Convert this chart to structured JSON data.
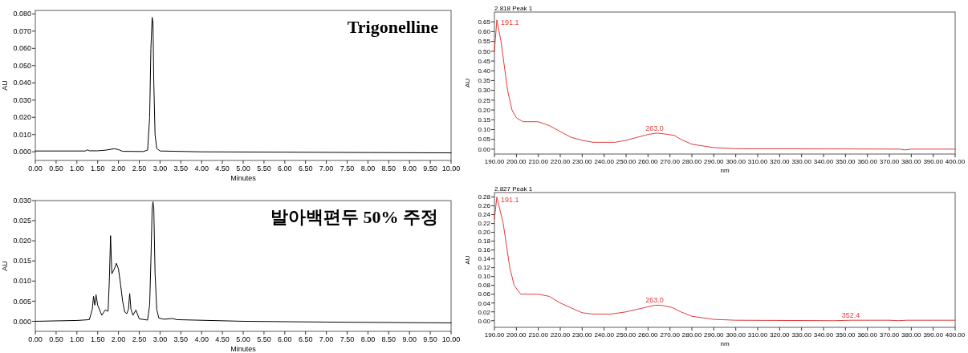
{
  "chart_data": [
    {
      "type": "line",
      "title": "Trigonelline",
      "xlabel": "Minutes",
      "ylabel": "AU",
      "grid": false,
      "marker": "none",
      "line_style": "solid",
      "xlim": [
        0,
        10
      ],
      "ylim": [
        -0.005,
        0.082
      ],
      "xticks": [
        {
          "value": 0,
          "label": "0.00"
        },
        {
          "value": 0.5,
          "label": "0.50"
        },
        {
          "value": 1,
          "label": "1.00"
        },
        {
          "value": 1.5,
          "label": "1.50"
        },
        {
          "value": 2,
          "label": "2.00"
        },
        {
          "value": 2.5,
          "label": "2.50"
        },
        {
          "value": 3,
          "label": "3.00"
        },
        {
          "value": 3.5,
          "label": "3.50"
        },
        {
          "value": 4,
          "label": "4.00"
        },
        {
          "value": 4.5,
          "label": "4.50"
        },
        {
          "value": 5,
          "label": "5.00"
        },
        {
          "value": 5.5,
          "label": "5.50"
        },
        {
          "value": 6,
          "label": "6.00"
        },
        {
          "value": 6.5,
          "label": "6.50"
        },
        {
          "value": 7,
          "label": "7.00"
        },
        {
          "value": 7.5,
          "label": "7.50"
        },
        {
          "value": 8,
          "label": "8.00"
        },
        {
          "value": 8.5,
          "label": "8.50"
        },
        {
          "value": 9,
          "label": "9.00"
        },
        {
          "value": 9.5,
          "label": "9.50"
        },
        {
          "value": 10,
          "label": "10.00"
        }
      ],
      "yticks": [
        {
          "value": 0,
          "label": "0.000"
        },
        {
          "value": 0.01,
          "label": "0.010"
        },
        {
          "value": 0.02,
          "label": "0.020"
        },
        {
          "value": 0.03,
          "label": "0.030"
        },
        {
          "value": 0.04,
          "label": "0.040"
        },
        {
          "value": 0.05,
          "label": "0.050"
        },
        {
          "value": 0.06,
          "label": "0.060"
        },
        {
          "value": 0.07,
          "label": "0.070"
        },
        {
          "value": 0.08,
          "label": "0.080"
        }
      ],
      "series": [
        {
          "color": "#000000",
          "x": [
            0,
            1.2,
            1.25,
            1.3,
            1.5,
            1.7,
            1.9,
            2.0,
            2.1,
            2.6,
            2.7,
            2.75,
            2.78,
            2.81,
            2.83,
            2.85,
            2.88,
            2.92,
            3.0,
            4,
            6,
            8,
            10
          ],
          "values": [
            0.0005,
            0.0005,
            0.0012,
            0.0006,
            0.0006,
            0.001,
            0.0018,
            0.0013,
            0.0003,
            0.0002,
            0.001,
            0.02,
            0.06,
            0.078,
            0.075,
            0.04,
            0.01,
            0.002,
            0.0005,
            0,
            -0.0002,
            -0.0004,
            -0.0006
          ]
        }
      ]
    },
    {
      "type": "line",
      "title": "발아백편두 50% 주정",
      "xlabel": "Minutes",
      "ylabel": "AU",
      "grid": false,
      "marker": "none",
      "line_style": "solid",
      "xlim": [
        0,
        10
      ],
      "ylim": [
        -0.0025,
        0.03
      ],
      "xticks": [
        {
          "value": 0,
          "label": "0.00"
        },
        {
          "value": 0.5,
          "label": "0.50"
        },
        {
          "value": 1,
          "label": "1.00"
        },
        {
          "value": 1.5,
          "label": "1.50"
        },
        {
          "value": 2,
          "label": "2.00"
        },
        {
          "value": 2.5,
          "label": "2.50"
        },
        {
          "value": 3,
          "label": "3.00"
        },
        {
          "value": 3.5,
          "label": "3.50"
        },
        {
          "value": 4,
          "label": "4.00"
        },
        {
          "value": 4.5,
          "label": "4.50"
        },
        {
          "value": 5,
          "label": "5.00"
        },
        {
          "value": 5.5,
          "label": "5.50"
        },
        {
          "value": 6,
          "label": "6.00"
        },
        {
          "value": 6.5,
          "label": "6.50"
        },
        {
          "value": 7,
          "label": "7.00"
        },
        {
          "value": 7.5,
          "label": "7.50"
        },
        {
          "value": 8,
          "label": "8.00"
        },
        {
          "value": 8.5,
          "label": "8.50"
        },
        {
          "value": 9,
          "label": "9.00"
        },
        {
          "value": 9.5,
          "label": "9.50"
        },
        {
          "value": 10,
          "label": "10.00"
        }
      ],
      "yticks": [
        {
          "value": 0,
          "label": "0.000"
        },
        {
          "value": 0.005,
          "label": "0.005"
        },
        {
          "value": 0.01,
          "label": "0.010"
        },
        {
          "value": 0.015,
          "label": "0.015"
        },
        {
          "value": 0.02,
          "label": "0.020"
        },
        {
          "value": 0.025,
          "label": "0.025"
        },
        {
          "value": 0.03,
          "label": "0.030"
        }
      ],
      "series": [
        {
          "color": "#000000",
          "x": [
            0,
            1.0,
            1.3,
            1.37,
            1.4,
            1.43,
            1.46,
            1.5,
            1.6,
            1.68,
            1.75,
            1.78,
            1.81,
            1.84,
            1.9,
            1.95,
            2.0,
            2.05,
            2.1,
            2.15,
            2.2,
            2.24,
            2.27,
            2.3,
            2.35,
            2.42,
            2.5,
            2.7,
            2.75,
            2.78,
            2.81,
            2.83,
            2.85,
            2.88,
            2.92,
            2.97,
            3.1,
            3.3,
            3.4,
            5,
            7,
            10
          ],
          "values": [
            0,
            0.0002,
            0.0004,
            0.003,
            0.0062,
            0.004,
            0.0066,
            0.004,
            0.0015,
            0.0028,
            0.0025,
            0.01,
            0.0213,
            0.0118,
            0.013,
            0.0144,
            0.013,
            0.0092,
            0.005,
            0.0023,
            0.0019,
            0.003,
            0.0069,
            0.003,
            0.0015,
            0.0028,
            0.0006,
            0.0003,
            0.004,
            0.015,
            0.028,
            0.0297,
            0.028,
            0.012,
            0.003,
            0.0008,
            0.0005,
            0.0007,
            0.0004,
            0,
            -0.0002,
            -0.0004
          ]
        }
      ]
    },
    {
      "type": "line",
      "title": "2.818 Peak 1",
      "xlabel": "nm",
      "ylabel": "AU",
      "grid": false,
      "marker": "none",
      "line_style": "solid",
      "xlim": [
        190,
        400
      ],
      "ylim": [
        -0.025,
        0.7
      ],
      "xticks": [
        {
          "value": 190,
          "label": "190.00"
        },
        {
          "value": 200,
          "label": "200.00"
        },
        {
          "value": 210,
          "label": "210.00"
        },
        {
          "value": 220,
          "label": "220.00"
        },
        {
          "value": 230,
          "label": "230.00"
        },
        {
          "value": 240,
          "label": "240.00"
        },
        {
          "value": 250,
          "label": "250.00"
        },
        {
          "value": 260,
          "label": "260.00"
        },
        {
          "value": 270,
          "label": "270.00"
        },
        {
          "value": 280,
          "label": "280.00"
        },
        {
          "value": 290,
          "label": "290.00"
        },
        {
          "value": 300,
          "label": "300.00"
        },
        {
          "value": 310,
          "label": "310.00"
        },
        {
          "value": 320,
          "label": "320.00"
        },
        {
          "value": 330,
          "label": "330.00"
        },
        {
          "value": 340,
          "label": "340.00"
        },
        {
          "value": 350,
          "label": "350.00"
        },
        {
          "value": 360,
          "label": "360.00"
        },
        {
          "value": 370,
          "label": "370.00"
        },
        {
          "value": 380,
          "label": "380.00"
        },
        {
          "value": 390,
          "label": "390.00"
        },
        {
          "value": 400,
          "label": "400.00"
        }
      ],
      "yticks": [
        {
          "value": 0,
          "label": "0.00"
        },
        {
          "value": 0.05,
          "label": "0.05"
        },
        {
          "value": 0.1,
          "label": "0.10"
        },
        {
          "value": 0.15,
          "label": "0.15"
        },
        {
          "value": 0.2,
          "label": "0.20"
        },
        {
          "value": 0.25,
          "label": "0.25"
        },
        {
          "value": 0.3,
          "label": "0.30"
        },
        {
          "value": 0.35,
          "label": "0.35"
        },
        {
          "value": 0.4,
          "label": "0.40"
        },
        {
          "value": 0.45,
          "label": "0.45"
        },
        {
          "value": 0.5,
          "label": "0.50"
        },
        {
          "value": 0.55,
          "label": "0.55"
        },
        {
          "value": 0.6,
          "label": "0.60"
        },
        {
          "value": 0.65,
          "label": "0.65"
        }
      ],
      "annotations": [
        {
          "text": "191.1",
          "x": 191.1,
          "y": 0.66
        },
        {
          "text": "263.0",
          "x": 263,
          "y": 0.082
        }
      ],
      "series": [
        {
          "color": "#e03c3c",
          "x": [
            190,
            191.1,
            193,
            196,
            198,
            200,
            203,
            210,
            215,
            220,
            225,
            230,
            235,
            245,
            250,
            255,
            260,
            264,
            268,
            272,
            275,
            280,
            290,
            300,
            350,
            375,
            377,
            380,
            400
          ],
          "values": [
            0.5,
            0.66,
            0.55,
            0.3,
            0.2,
            0.16,
            0.14,
            0.14,
            0.12,
            0.09,
            0.06,
            0.045,
            0.035,
            0.035,
            0.045,
            0.06,
            0.075,
            0.082,
            0.077,
            0.07,
            0.05,
            0.025,
            0.008,
            0.002,
            0.001,
            0,
            -0.004,
            0,
            0
          ]
        }
      ]
    },
    {
      "type": "line",
      "title": "2.827 Peak 1",
      "xlabel": "nm",
      "ylabel": "AU",
      "grid": false,
      "marker": "none",
      "line_style": "solid",
      "xlim": [
        190,
        400
      ],
      "ylim": [
        -0.015,
        0.29
      ],
      "xticks": [
        {
          "value": 190,
          "label": "190.00"
        },
        {
          "value": 200,
          "label": "200.00"
        },
        {
          "value": 210,
          "label": "210.00"
        },
        {
          "value": 220,
          "label": "220.00"
        },
        {
          "value": 230,
          "label": "230.00"
        },
        {
          "value": 240,
          "label": "240.00"
        },
        {
          "value": 250,
          "label": "250.00"
        },
        {
          "value": 260,
          "label": "260.00"
        },
        {
          "value": 270,
          "label": "270.00"
        },
        {
          "value": 280,
          "label": "280.00"
        },
        {
          "value": 290,
          "label": "290.00"
        },
        {
          "value": 300,
          "label": "300.00"
        },
        {
          "value": 310,
          "label": "310.00"
        },
        {
          "value": 320,
          "label": "320.00"
        },
        {
          "value": 330,
          "label": "330.00"
        },
        {
          "value": 340,
          "label": "340.00"
        },
        {
          "value": 350,
          "label": "350.00"
        },
        {
          "value": 360,
          "label": "360.00"
        },
        {
          "value": 370,
          "label": "370.00"
        },
        {
          "value": 380,
          "label": "380.00"
        },
        {
          "value": 390,
          "label": "390.00"
        },
        {
          "value": 400,
          "label": "400.00"
        }
      ],
      "yticks": [
        {
          "value": 0,
          "label": "0.00"
        },
        {
          "value": 0.02,
          "label": "0.02"
        },
        {
          "value": 0.04,
          "label": "0.04"
        },
        {
          "value": 0.06,
          "label": "0.06"
        },
        {
          "value": 0.08,
          "label": "0.08"
        },
        {
          "value": 0.1,
          "label": "0.10"
        },
        {
          "value": 0.12,
          "label": "0.12"
        },
        {
          "value": 0.14,
          "label": "0.14"
        },
        {
          "value": 0.16,
          "label": "0.16"
        },
        {
          "value": 0.18,
          "label": "0.18"
        },
        {
          "value": 0.2,
          "label": "0.20"
        },
        {
          "value": 0.22,
          "label": "0.22"
        },
        {
          "value": 0.24,
          "label": "0.24"
        },
        {
          "value": 0.26,
          "label": "0.26"
        },
        {
          "value": 0.28,
          "label": "0.28"
        }
      ],
      "annotations": [
        {
          "text": "191.1",
          "x": 191.1,
          "y": 0.28
        },
        {
          "text": "263.0",
          "x": 263,
          "y": 0.035
        },
        {
          "text": "352.4",
          "x": 352.4,
          "y": 0.001
        }
      ],
      "series": [
        {
          "color": "#e03c3c",
          "x": [
            190,
            191.1,
            194,
            197,
            199,
            202,
            210,
            215,
            220,
            230,
            235,
            243,
            250,
            257,
            263,
            266,
            271,
            275,
            280,
            290,
            300,
            345,
            352.4,
            370,
            374,
            378,
            400
          ],
          "values": [
            0.23,
            0.28,
            0.22,
            0.12,
            0.08,
            0.06,
            0.06,
            0.055,
            0.04,
            0.018,
            0.015,
            0.015,
            0.02,
            0.028,
            0.035,
            0.035,
            0.03,
            0.02,
            0.01,
            0.003,
            0.001,
            0,
            0.001,
            0.001,
            0,
            0.001,
            0.001
          ]
        }
      ]
    }
  ]
}
